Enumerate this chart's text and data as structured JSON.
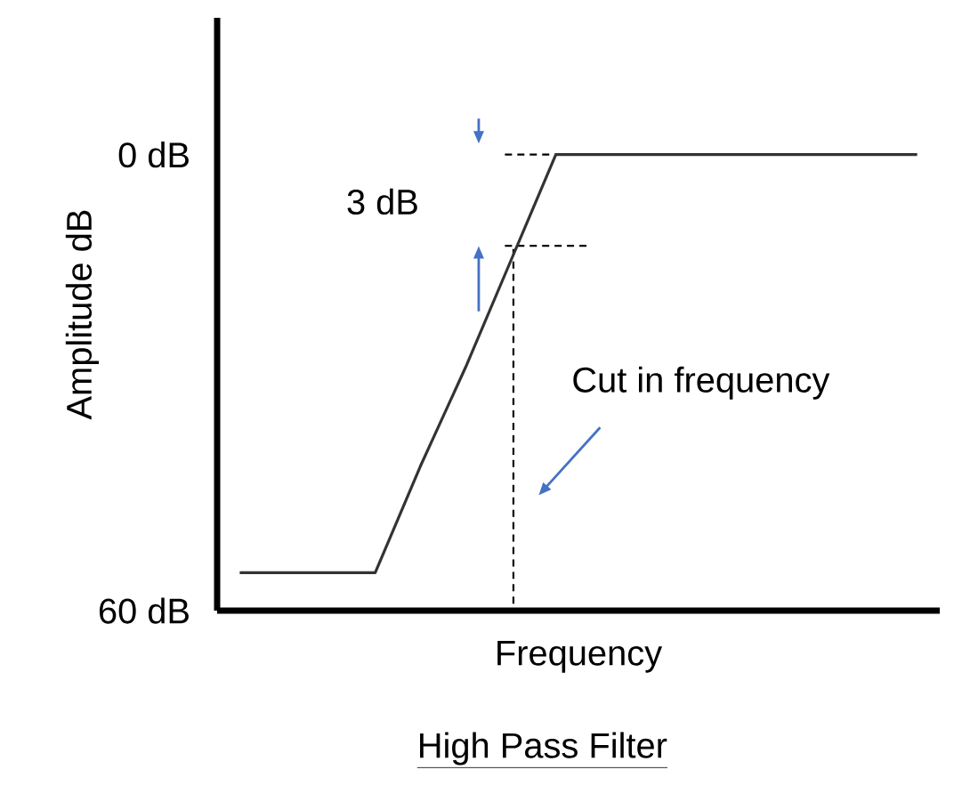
{
  "chart_data": {
    "type": "line",
    "title": "High Pass Filter",
    "xlabel": "Frequency",
    "ylabel": "Amplitude dB",
    "annotations": [
      "3 dB",
      "Cut in frequency"
    ],
    "categories": [
      null,
      null,
      null,
      null,
      null,
      null,
      null,
      null,
      null,
      null,
      null,
      null,
      null,
      null,
      null,
      null
    ],
    "ylim": [
      60,
      -18
    ],
    "yticks": [
      {
        "value": 0,
        "label": "0 dB"
      },
      {
        "value": 60,
        "label": "60 dB"
      }
    ],
    "ref_lines": [
      {
        "axis": "y",
        "value": 0,
        "color": "#000000",
        "line_style": "dashed"
      },
      {
        "axis": "y",
        "value": 12,
        "color": "#000000",
        "line_style": "dashed"
      }
    ],
    "tick_labels": "y",
    "marker": "none",
    "line_style": "solid",
    "series": [
      {
        "color": "#333333",
        "values": [
          55,
          55,
          55,
          55,
          41,
          28,
          14,
          0,
          0,
          0,
          0,
          0,
          0,
          0,
          0,
          0
        ]
      }
    ]
  }
}
